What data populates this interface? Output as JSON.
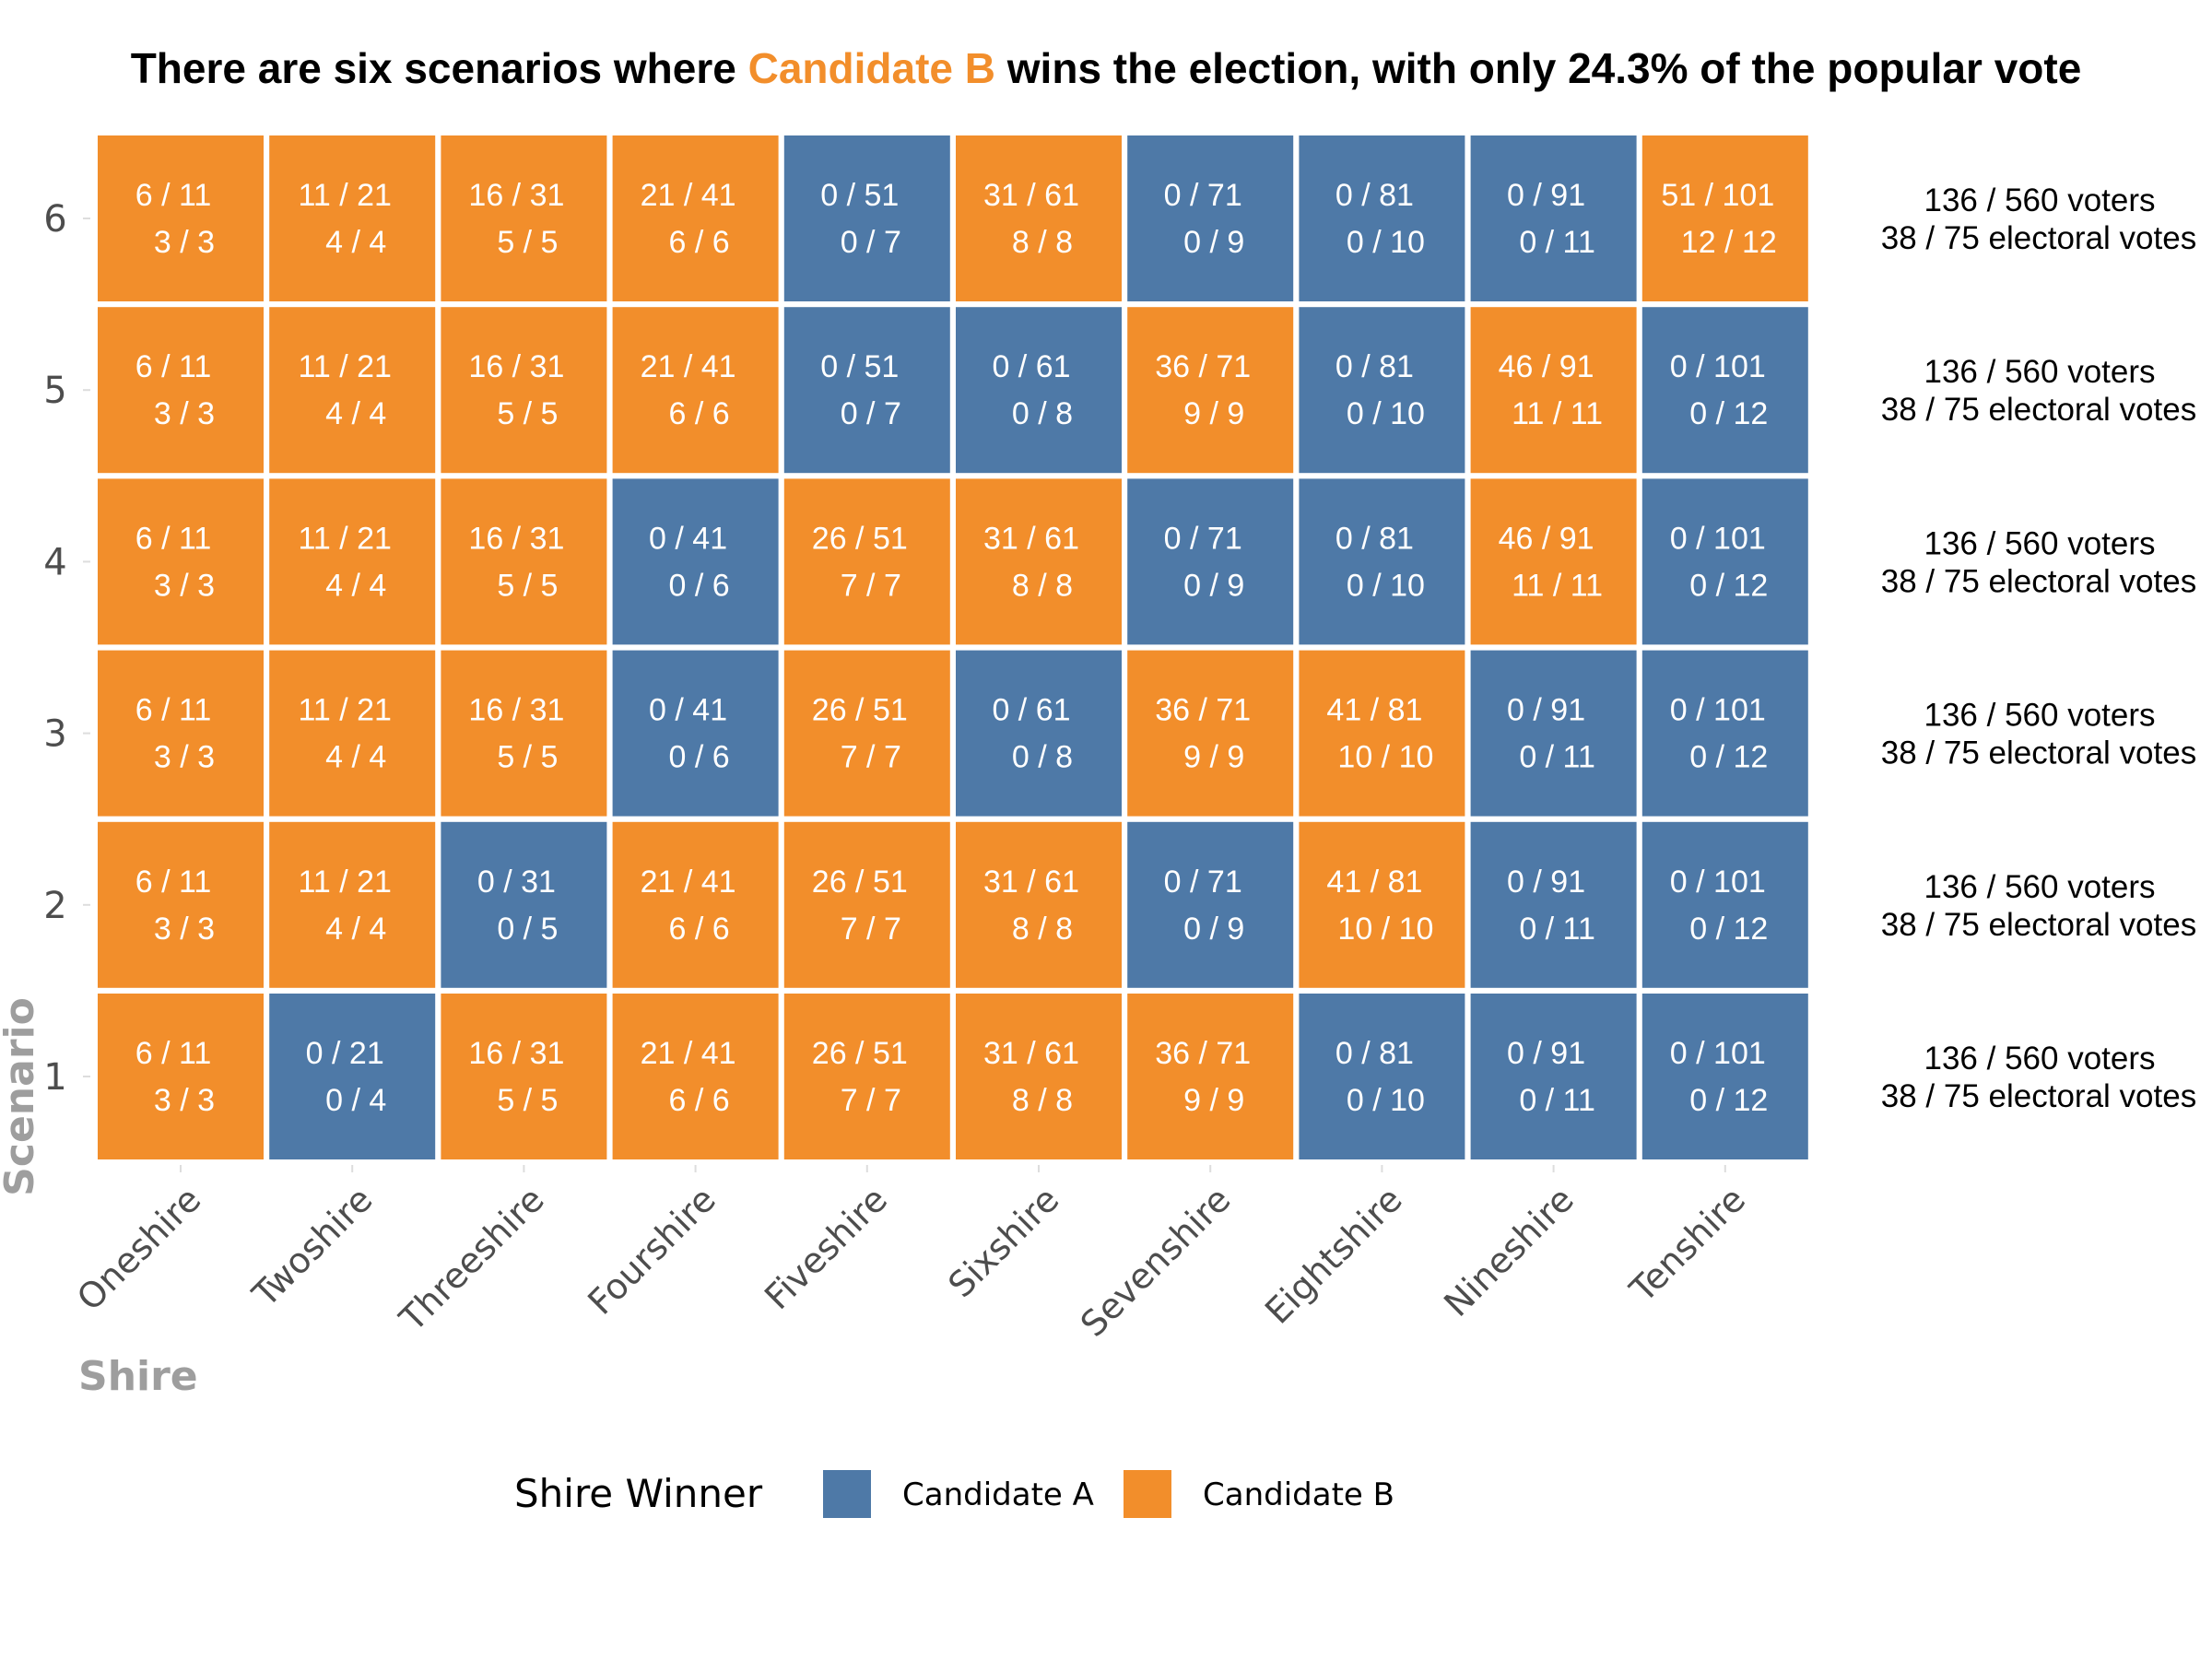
{
  "chart_data": {
    "type": "heatmap",
    "title": {
      "prefix": "There are six scenarios where ",
      "highlight": "Candidate B",
      "suffix": " wins the election, with only 24.3% of the popular vote"
    },
    "xlabel": "Shire",
    "ylabel": "Scenario",
    "x": [
      "Oneshire",
      "Twoshire",
      "Threeshire",
      "Fourshire",
      "Fiveshire",
      "Sixshire",
      "Sevenshire",
      "Eightshire",
      "Nineshire",
      "Tenshire"
    ],
    "y": [
      "1",
      "2",
      "3",
      "4",
      "5",
      "6"
    ],
    "grid": false,
    "legend": {
      "title": "Shire Winner",
      "position": "bottom",
      "entries": [
        {
          "label": "Candidate A",
          "color": "#4e79a7"
        },
        {
          "label": "Candidate B",
          "color": "#f28e2b"
        }
      ]
    },
    "colors": {
      "A": "#4e79a7",
      "B": "#f28e2b",
      "highlight_text": "#f28e2b"
    },
    "rows": [
      {
        "scenario": "1",
        "summary_voters": "136 / 560 voters",
        "summary_electoral": "38 / 75 electoral votes",
        "cells": [
          {
            "winner": "B",
            "voters": "6 / 11",
            "electoral": "3 / 3"
          },
          {
            "winner": "A",
            "voters": "0 / 21",
            "electoral": "0 / 4"
          },
          {
            "winner": "B",
            "voters": "16 / 31",
            "electoral": "5 / 5"
          },
          {
            "winner": "B",
            "voters": "21 / 41",
            "electoral": "6 / 6"
          },
          {
            "winner": "B",
            "voters": "26 / 51",
            "electoral": "7 / 7"
          },
          {
            "winner": "B",
            "voters": "31 / 61",
            "electoral": "8 / 8"
          },
          {
            "winner": "B",
            "voters": "36 / 71",
            "electoral": "9 / 9"
          },
          {
            "winner": "A",
            "voters": "0 / 81",
            "electoral": "0 / 10"
          },
          {
            "winner": "A",
            "voters": "0 / 91",
            "electoral": "0 / 11"
          },
          {
            "winner": "A",
            "voters": "0 / 101",
            "electoral": "0 / 12"
          }
        ]
      },
      {
        "scenario": "2",
        "summary_voters": "136 / 560 voters",
        "summary_electoral": "38 / 75 electoral votes",
        "cells": [
          {
            "winner": "B",
            "voters": "6 / 11",
            "electoral": "3 / 3"
          },
          {
            "winner": "B",
            "voters": "11 / 21",
            "electoral": "4 / 4"
          },
          {
            "winner": "A",
            "voters": "0 / 31",
            "electoral": "0 / 5"
          },
          {
            "winner": "B",
            "voters": "21 / 41",
            "electoral": "6 / 6"
          },
          {
            "winner": "B",
            "voters": "26 / 51",
            "electoral": "7 / 7"
          },
          {
            "winner": "B",
            "voters": "31 / 61",
            "electoral": "8 / 8"
          },
          {
            "winner": "A",
            "voters": "0 / 71",
            "electoral": "0 / 9"
          },
          {
            "winner": "B",
            "voters": "41 / 81",
            "electoral": "10 / 10"
          },
          {
            "winner": "A",
            "voters": "0 / 91",
            "electoral": "0 / 11"
          },
          {
            "winner": "A",
            "voters": "0 / 101",
            "electoral": "0 / 12"
          }
        ]
      },
      {
        "scenario": "3",
        "summary_voters": "136 / 560 voters",
        "summary_electoral": "38 / 75 electoral votes",
        "cells": [
          {
            "winner": "B",
            "voters": "6 / 11",
            "electoral": "3 / 3"
          },
          {
            "winner": "B",
            "voters": "11 / 21",
            "electoral": "4 / 4"
          },
          {
            "winner": "B",
            "voters": "16 / 31",
            "electoral": "5 / 5"
          },
          {
            "winner": "A",
            "voters": "0 / 41",
            "electoral": "0 / 6"
          },
          {
            "winner": "B",
            "voters": "26 / 51",
            "electoral": "7 / 7"
          },
          {
            "winner": "A",
            "voters": "0 / 61",
            "electoral": "0 / 8"
          },
          {
            "winner": "B",
            "voters": "36 / 71",
            "electoral": "9 / 9"
          },
          {
            "winner": "B",
            "voters": "41 / 81",
            "electoral": "10 / 10"
          },
          {
            "winner": "A",
            "voters": "0 / 91",
            "electoral": "0 / 11"
          },
          {
            "winner": "A",
            "voters": "0 / 101",
            "electoral": "0 / 12"
          }
        ]
      },
      {
        "scenario": "4",
        "summary_voters": "136 / 560 voters",
        "summary_electoral": "38 / 75 electoral votes",
        "cells": [
          {
            "winner": "B",
            "voters": "6 / 11",
            "electoral": "3 / 3"
          },
          {
            "winner": "B",
            "voters": "11 / 21",
            "electoral": "4 / 4"
          },
          {
            "winner": "B",
            "voters": "16 / 31",
            "electoral": "5 / 5"
          },
          {
            "winner": "A",
            "voters": "0 / 41",
            "electoral": "0 / 6"
          },
          {
            "winner": "B",
            "voters": "26 / 51",
            "electoral": "7 / 7"
          },
          {
            "winner": "B",
            "voters": "31 / 61",
            "electoral": "8 / 8"
          },
          {
            "winner": "A",
            "voters": "0 / 71",
            "electoral": "0 / 9"
          },
          {
            "winner": "A",
            "voters": "0 / 81",
            "electoral": "0 / 10"
          },
          {
            "winner": "B",
            "voters": "46 / 91",
            "electoral": "11 / 11"
          },
          {
            "winner": "A",
            "voters": "0 / 101",
            "electoral": "0 / 12"
          }
        ]
      },
      {
        "scenario": "5",
        "summary_voters": "136 / 560 voters",
        "summary_electoral": "38 / 75 electoral votes",
        "cells": [
          {
            "winner": "B",
            "voters": "6 / 11",
            "electoral": "3 / 3"
          },
          {
            "winner": "B",
            "voters": "11 / 21",
            "electoral": "4 / 4"
          },
          {
            "winner": "B",
            "voters": "16 / 31",
            "electoral": "5 / 5"
          },
          {
            "winner": "B",
            "voters": "21 / 41",
            "electoral": "6 / 6"
          },
          {
            "winner": "A",
            "voters": "0 / 51",
            "electoral": "0 / 7"
          },
          {
            "winner": "A",
            "voters": "0 / 61",
            "electoral": "0 / 8"
          },
          {
            "winner": "B",
            "voters": "36 / 71",
            "electoral": "9 / 9"
          },
          {
            "winner": "A",
            "voters": "0 / 81",
            "electoral": "0 / 10"
          },
          {
            "winner": "B",
            "voters": "46 / 91",
            "electoral": "11 / 11"
          },
          {
            "winner": "A",
            "voters": "0 / 101",
            "electoral": "0 / 12"
          }
        ]
      },
      {
        "scenario": "6",
        "summary_voters": "136 / 560 voters",
        "summary_electoral": "38 / 75 electoral votes",
        "cells": [
          {
            "winner": "B",
            "voters": "6 / 11",
            "electoral": "3 / 3"
          },
          {
            "winner": "B",
            "voters": "11 / 21",
            "electoral": "4 / 4"
          },
          {
            "winner": "B",
            "voters": "16 / 31",
            "electoral": "5 / 5"
          },
          {
            "winner": "B",
            "voters": "21 / 41",
            "electoral": "6 / 6"
          },
          {
            "winner": "A",
            "voters": "0 / 51",
            "electoral": "0 / 7"
          },
          {
            "winner": "B",
            "voters": "31 / 61",
            "electoral": "8 / 8"
          },
          {
            "winner": "A",
            "voters": "0 / 71",
            "electoral": "0 / 9"
          },
          {
            "winner": "A",
            "voters": "0 / 81",
            "electoral": "0 / 10"
          },
          {
            "winner": "A",
            "voters": "0 / 91",
            "electoral": "0 / 11"
          },
          {
            "winner": "B",
            "voters": "51 / 101",
            "electoral": "12 / 12"
          }
        ]
      }
    ]
  }
}
